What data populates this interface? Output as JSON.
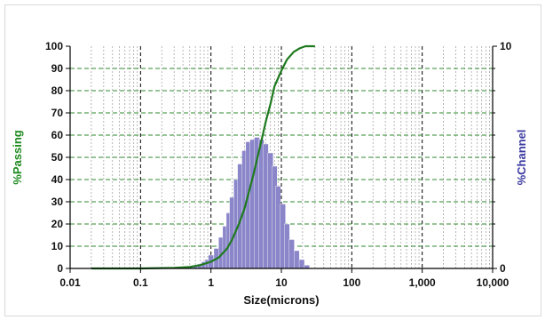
{
  "chart_data": {
    "type": "bar+line",
    "title": "",
    "xlabel": "Size(microns)",
    "ylabel_left": "%Passing",
    "ylabel_right": "%Channel",
    "x_scale": "log",
    "xlim": [
      0.01,
      10000
    ],
    "ylim_left": [
      0,
      100
    ],
    "ylim_right": [
      0,
      10
    ],
    "x_tick_labels": [
      "0.01",
      "0.1",
      "1",
      "10",
      "100",
      "1,000",
      "10,000"
    ],
    "y_tick_labels_left": [
      "0",
      "10",
      "20",
      "30",
      "40",
      "50",
      "60",
      "70",
      "80",
      "90",
      "100"
    ],
    "y_tick_labels_right": [
      "0",
      "10"
    ],
    "grid": true,
    "colors": {
      "passing_line": "#1e7a1e",
      "channel_bars": "#8a86c9",
      "channel_bar_edge": "#ffffff",
      "left_axis_title": "#1f8a1f",
      "right_axis_title": "#3a3aa0",
      "grid_vertical": "#000000",
      "grid_horizontal": "#2f8a2f"
    },
    "series": [
      {
        "kind": "line",
        "axis": "left",
        "x": [
          0.02,
          0.1,
          0.3,
          0.5,
          0.7,
          1.0,
          1.3,
          1.7,
          2.0,
          2.5,
          3.0,
          3.5,
          4.0,
          4.5,
          5.0,
          6.0,
          7.0,
          8.0,
          10.0,
          12.0,
          15.0,
          18.0,
          22.0,
          30.0
        ],
        "y": [
          0,
          0,
          0.3,
          0.7,
          1.5,
          3,
          5,
          9,
          13,
          20,
          27,
          35,
          42,
          49,
          55,
          66,
          74,
          82,
          89,
          94,
          97.5,
          99,
          100,
          100
        ]
      },
      {
        "kind": "bar",
        "axis": "right",
        "x": [
          0.5,
          0.6,
          0.7,
          0.8,
          0.9,
          1.0,
          1.2,
          1.4,
          1.6,
          1.8,
          2.0,
          2.3,
          2.6,
          3.0,
          3.4,
          3.9,
          4.5,
          5.2,
          6.0,
          7.0,
          8.0,
          9.0,
          10.5,
          12.0,
          14.0,
          16.5,
          19.5,
          23.0
        ],
        "y": [
          0.1,
          0.15,
          0.2,
          0.3,
          0.4,
          0.6,
          0.9,
          1.4,
          1.9,
          2.5,
          3.2,
          4.0,
          4.7,
          5.3,
          5.7,
          5.8,
          5.9,
          5.8,
          5.6,
          5.2,
          4.6,
          3.7,
          2.9,
          2.0,
          1.3,
          0.8,
          0.4,
          0.15
        ]
      }
    ]
  }
}
